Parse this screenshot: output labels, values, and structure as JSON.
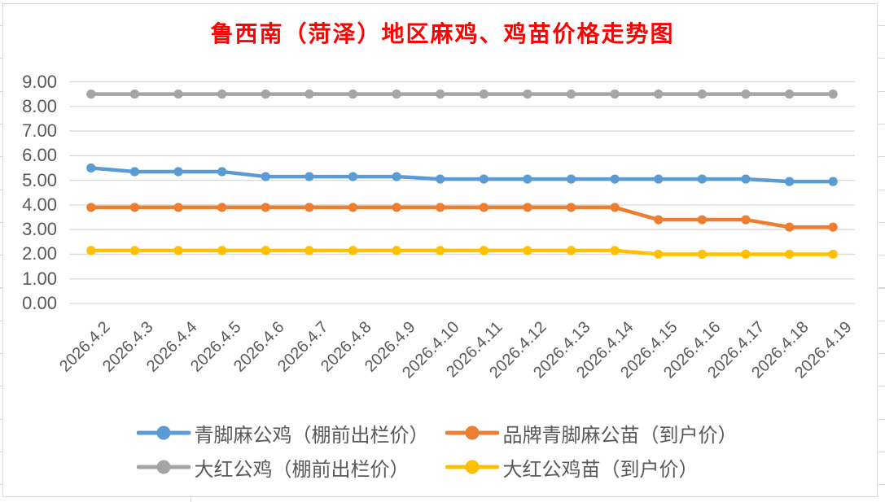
{
  "chart_data": {
    "type": "line",
    "title": "鲁西南（菏泽）地区麻鸡、鸡苗价格走势图",
    "categories": [
      "2026.4.2",
      "2026.4.3",
      "2026.4.4",
      "2026.4.5",
      "2026.4.6",
      "2026.4.7",
      "2026.4.8",
      "2026.4.9",
      "2026.4.10",
      "2026.4.11",
      "2026.4.12",
      "2026.4.13",
      "2026.4.14",
      "2026.4.15",
      "2026.4.16",
      "2026.4.17",
      "2026.4.18",
      "2026.4.19"
    ],
    "series": [
      {
        "name": "青脚麻公鸡（棚前出栏价）",
        "color": "#5B9BD5",
        "values": [
          5.5,
          5.35,
          5.35,
          5.35,
          5.15,
          5.15,
          5.15,
          5.15,
          5.05,
          5.05,
          5.05,
          5.05,
          5.05,
          5.05,
          5.05,
          5.05,
          4.95,
          4.95
        ]
      },
      {
        "name": "品牌青脚麻公苗（到户价）",
        "color": "#ED7D31",
        "values": [
          3.9,
          3.9,
          3.9,
          3.9,
          3.9,
          3.9,
          3.9,
          3.9,
          3.9,
          3.9,
          3.9,
          3.9,
          3.9,
          3.4,
          3.4,
          3.4,
          3.1,
          3.1
        ]
      },
      {
        "name": "大红公鸡（棚前出栏价）",
        "color": "#A5A5A5",
        "values": [
          8.5,
          8.5,
          8.5,
          8.5,
          8.5,
          8.5,
          8.5,
          8.5,
          8.5,
          8.5,
          8.5,
          8.5,
          8.5,
          8.5,
          8.5,
          8.5,
          8.5,
          8.5
        ]
      },
      {
        "name": "大红公鸡苗（到户价）",
        "color": "#FFC000",
        "values": [
          2.15,
          2.15,
          2.15,
          2.15,
          2.15,
          2.15,
          2.15,
          2.15,
          2.15,
          2.15,
          2.15,
          2.15,
          2.15,
          2.0,
          2.0,
          2.0,
          2.0,
          2.0
        ]
      }
    ],
    "xlabel": "",
    "ylabel": "",
    "ylim": [
      0,
      9
    ],
    "ytick_step": 1,
    "ytick_labels": [
      "0.00",
      "1.00",
      "2.00",
      "3.00",
      "4.00",
      "5.00",
      "6.00",
      "7.00",
      "8.00",
      "9.00"
    ],
    "grid": true,
    "legend_position": "bottom",
    "legend_columns": 2
  },
  "colors": {
    "title": "#FF0000",
    "axis_text": "#595959",
    "legend_text": "#595959",
    "gridline": "#D9D9D9",
    "chart_border": "#D9D9D9",
    "background": "#FFFFFF"
  }
}
